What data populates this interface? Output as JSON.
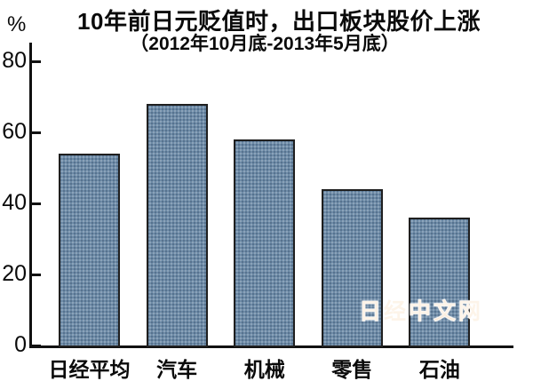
{
  "chart_data": {
    "type": "bar",
    "title": "10年前日元贬值时，出口板块股价上涨",
    "subtitle": "（2012年10月底-2013年5月底）",
    "unit_label": "%",
    "categories": [
      "日经平均",
      "汽车",
      "机械",
      "零售",
      "石油"
    ],
    "values": [
      54,
      68,
      58,
      44,
      36
    ],
    "y_ticks": [
      0,
      20,
      40,
      60,
      80
    ],
    "ylim": [
      0,
      85
    ],
    "grid": false,
    "legend": "none",
    "bar_color": "#6d8ba7",
    "bar_border_color": "#1f1f1f",
    "axis_color": "#111111",
    "text_color": "#0a0a0a"
  },
  "watermark": {
    "text": "日经中文网",
    "color": "#e89638"
  }
}
